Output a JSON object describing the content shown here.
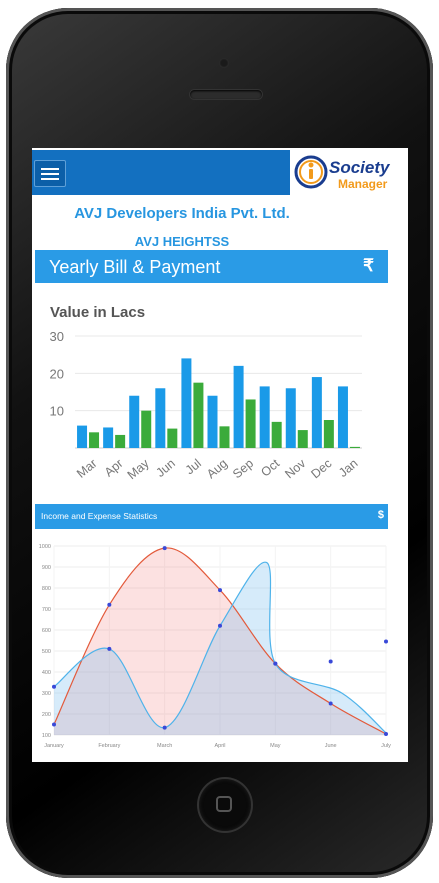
{
  "header": {
    "menu_icon": "hamburger-icon",
    "logo_line1": "Society",
    "logo_line2": "Manager",
    "company": "AVJ Developers India Pvt. Ltd.",
    "society": "AVJ HEIGHTSS"
  },
  "yearly_panel": {
    "title": "Yearly Bill & Payment",
    "currency_symbol": "₹"
  },
  "stats_panel": {
    "title": "Income and Expense Statistics",
    "currency_symbol": "$"
  },
  "colors": {
    "header_blue": "#1370c0",
    "panel_blue": "#2a9be6",
    "bar_blue": "#1a9ae8",
    "bar_green": "#3bab3b",
    "line_red": "#e35a3b",
    "line_blue": "#4fb3ea"
  },
  "chart_data": [
    {
      "type": "bar",
      "title": "Value in Lacs",
      "categories": [
        "Mar",
        "Apr",
        "May",
        "Jun",
        "Jul",
        "Aug",
        "Sep",
        "Oct",
        "Nov",
        "Dec",
        "Jan"
      ],
      "series": [
        {
          "values": [
            6,
            5.5,
            14,
            16,
            24,
            14,
            22,
            16.5,
            16,
            19,
            16.5
          ]
        },
        {
          "values": [
            4.2,
            3.5,
            10,
            5.2,
            17.5,
            5.8,
            13,
            7,
            4.8,
            7.5,
            0.3
          ]
        }
      ],
      "yticks": [
        10,
        20,
        30
      ],
      "ylim": [
        0,
        30
      ],
      "grid": true
    },
    {
      "type": "area",
      "categories": [
        "January",
        "February",
        "March",
        "April",
        "May",
        "June",
        "July"
      ],
      "yticks": [
        100,
        200,
        300,
        400,
        500,
        600,
        700,
        800,
        900,
        1000
      ],
      "ylim": [
        100,
        1000
      ],
      "series": [
        {
          "values": [
            150,
            720,
            990,
            790,
            440,
            250,
            105
          ]
        },
        {
          "values": [
            330,
            510,
            135,
            620,
            440,
            450,
            545
          ]
        }
      ],
      "series_hidden": {
        "blue_area_peak": [
          310,
          920
        ]
      },
      "grid": true
    }
  ]
}
